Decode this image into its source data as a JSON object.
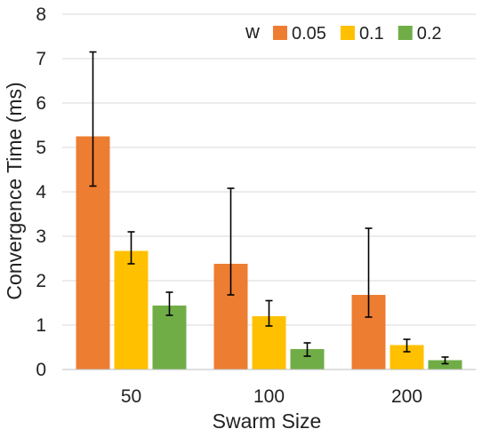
{
  "chart_data": {
    "type": "bar",
    "title": "",
    "xlabel": "Swarm Size",
    "ylabel": "Convergence Time (ms)",
    "categories": [
      "50",
      "100",
      "200"
    ],
    "ylim": [
      0,
      8
    ],
    "yticks": [
      0,
      1,
      2,
      3,
      4,
      5,
      6,
      7,
      8
    ],
    "grid": "horizontal",
    "legend": {
      "title": "w",
      "position": "top-right"
    },
    "series": [
      {
        "name": "0.05",
        "color": "#ED7D31",
        "values": [
          5.25,
          2.38,
          1.68
        ],
        "err_low": [
          4.13,
          1.68,
          1.18
        ],
        "err_high": [
          7.15,
          4.08,
          3.18
        ]
      },
      {
        "name": "0.1",
        "color": "#FFC000",
        "values": [
          2.67,
          1.2,
          0.55
        ],
        "err_low": [
          2.38,
          0.98,
          0.4
        ],
        "err_high": [
          3.1,
          1.55,
          0.68
        ]
      },
      {
        "name": "0.2",
        "color": "#70AD47",
        "values": [
          1.44,
          0.46,
          0.21
        ],
        "err_low": [
          1.22,
          0.3,
          0.13
        ],
        "err_high": [
          1.74,
          0.6,
          0.28
        ]
      }
    ]
  }
}
